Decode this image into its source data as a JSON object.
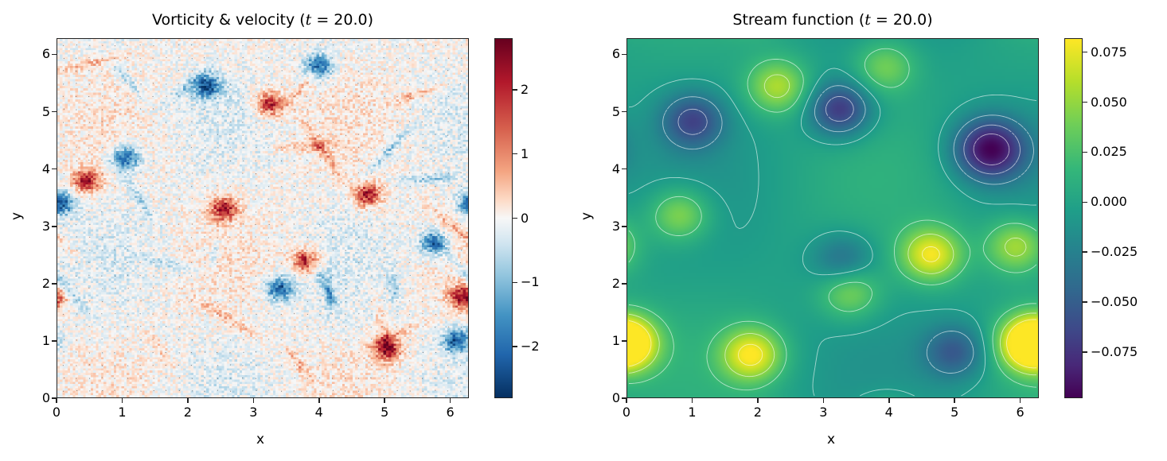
{
  "figure": {
    "panels": [
      {
        "title_prefix": "Vorticity & velocity (",
        "title_var": "t",
        "title_suffix": " = 20.0)",
        "xlabel": "x",
        "ylabel": "y",
        "xticks": [
          "0",
          "1",
          "2",
          "3",
          "4",
          "5",
          "6"
        ],
        "yticks": [
          "0",
          "1",
          "2",
          "3",
          "4",
          "5",
          "6"
        ],
        "colormap": "RdBu_r",
        "colorbar_ticks": [
          "2",
          "1",
          "0",
          "−1",
          "−2"
        ]
      },
      {
        "title_prefix": "Stream function (",
        "title_var": "t",
        "title_suffix": " = 20.0)",
        "xlabel": "x",
        "ylabel": "y",
        "xticks": [
          "0",
          "1",
          "2",
          "3",
          "4",
          "5",
          "6"
        ],
        "yticks": [
          "0",
          "1",
          "2",
          "3",
          "4",
          "5",
          "6"
        ],
        "colormap": "viridis",
        "colorbar_ticks": [
          "0.075",
          "0.050",
          "0.025",
          "0.000",
          "−0.025",
          "−0.050",
          "−0.075"
        ]
      }
    ]
  },
  "chart_data": [
    {
      "type": "heatmap",
      "title": "Vorticity & velocity (t = 20.0)",
      "xlabel": "x",
      "ylabel": "y",
      "xlim": [
        0,
        6.283
      ],
      "ylim": [
        0,
        6.283
      ],
      "xticks": [
        0,
        1,
        2,
        3,
        4,
        5,
        6
      ],
      "yticks": [
        0,
        1,
        2,
        3,
        4,
        5,
        6
      ],
      "colormap": "RdBu_r",
      "colorbar": {
        "range": [
          -2.8,
          2.8
        ],
        "ticks": [
          -2,
          -1,
          0,
          1,
          2
        ]
      },
      "features": [
        {
          "kind": "vortex",
          "sign": "negative",
          "x": 2.3,
          "y": 5.45
        },
        {
          "kind": "vortex",
          "sign": "negative",
          "x": 3.4,
          "y": 1.9
        },
        {
          "kind": "vortex",
          "sign": "negative",
          "x": 1.05,
          "y": 4.2
        },
        {
          "kind": "vortex",
          "sign": "negative",
          "x": 4.0,
          "y": 5.8
        },
        {
          "kind": "vortex",
          "sign": "negative",
          "x": 5.75,
          "y": 2.7
        },
        {
          "kind": "vortex",
          "sign": "negative",
          "x": 6.1,
          "y": 1.0
        },
        {
          "kind": "vortex",
          "sign": "negative",
          "x": 0.05,
          "y": 3.4
        },
        {
          "kind": "vortex",
          "sign": "positive",
          "x": 4.75,
          "y": 3.55
        },
        {
          "kind": "vortex",
          "sign": "positive",
          "x": 5.05,
          "y": 0.85
        },
        {
          "kind": "vortex",
          "sign": "positive",
          "x": 3.8,
          "y": 2.4
        },
        {
          "kind": "vortex",
          "sign": "positive",
          "x": 6.2,
          "y": 1.75
        },
        {
          "kind": "vortex",
          "sign": "positive",
          "x": 2.55,
          "y": 3.3
        },
        {
          "kind": "vortex",
          "sign": "positive",
          "x": 0.45,
          "y": 3.8
        },
        {
          "kind": "vortex",
          "sign": "positive",
          "x": 3.25,
          "y": 5.15
        }
      ],
      "overlay": "small velocity quiver arrows on grid"
    },
    {
      "type": "heatmap",
      "title": "Stream function (t = 20.0)",
      "xlabel": "x",
      "ylabel": "y",
      "xlim": [
        0,
        6.283
      ],
      "ylim": [
        0,
        6.283
      ],
      "xticks": [
        0,
        1,
        2,
        3,
        4,
        5,
        6
      ],
      "yticks": [
        0,
        1,
        2,
        3,
        4,
        5,
        6
      ],
      "colormap": "viridis",
      "colorbar": {
        "range": [
          -0.098,
          0.082
        ],
        "ticks": [
          -0.075,
          -0.05,
          -0.025,
          0.0,
          0.025,
          0.05,
          0.075
        ]
      },
      "features": [
        {
          "kind": "max",
          "x": 4.65,
          "y": 2.5,
          "value": 0.078
        },
        {
          "kind": "max",
          "x": 1.9,
          "y": 0.75,
          "value": 0.08
        },
        {
          "kind": "max",
          "x": 6.15,
          "y": 0.95,
          "value": 0.078
        },
        {
          "kind": "max",
          "x": 0.0,
          "y": 0.95,
          "value": 0.075
        },
        {
          "kind": "max",
          "x": 2.3,
          "y": 5.45,
          "value": 0.06
        },
        {
          "kind": "max",
          "x": 0.8,
          "y": 3.2,
          "value": 0.055
        },
        {
          "kind": "max",
          "x": 5.95,
          "y": 2.65,
          "value": 0.06
        },
        {
          "kind": "max",
          "x": 3.4,
          "y": 1.85,
          "value": 0.05
        },
        {
          "kind": "max",
          "x": 3.95,
          "y": 5.8,
          "value": 0.045
        },
        {
          "kind": "min",
          "x": 5.55,
          "y": 4.35,
          "value": -0.095
        },
        {
          "kind": "min",
          "x": 3.25,
          "y": 5.05,
          "value": -0.07
        },
        {
          "kind": "min",
          "x": 1.0,
          "y": 4.85,
          "value": -0.055
        },
        {
          "kind": "min",
          "x": 5.0,
          "y": 0.8,
          "value": -0.045
        },
        {
          "kind": "min",
          "x": 3.3,
          "y": 2.4,
          "value": -0.035
        }
      ],
      "overlay": "white contour lines; dashed for negative values, solid for positive"
    }
  ]
}
